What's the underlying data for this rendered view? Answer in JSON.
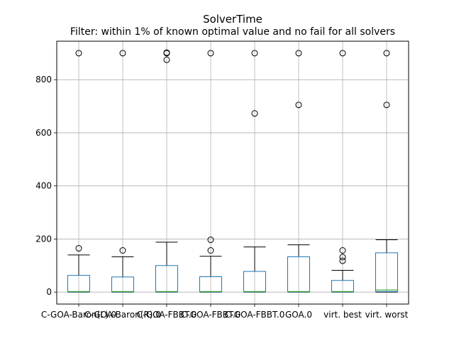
{
  "chart_data": {
    "type": "box",
    "title": "SolverTime",
    "subtitle": "Filter: within 1% of known optimal value and no fail for all solvers",
    "xlabel": "",
    "ylabel": "",
    "ylim": [
      -45,
      945
    ],
    "yticks": [
      0,
      200,
      400,
      600,
      800
    ],
    "grid": true,
    "colors": {
      "box": "#1f77b4",
      "median": "#2ca02c",
      "whisker": "#000000",
      "grid": "#b0b0b0",
      "flier": "#000000"
    },
    "categories": [
      "C-GOA-Baron(L).0",
      "C-GOA-Baron(R).0",
      "C-GOA-FBBT.0",
      "C-GOA-FBBT.0",
      "C-GOA-FBBT.0",
      "GOA.0",
      "virt. best",
      "virt. worst"
    ],
    "boxes": [
      {
        "q1": 1,
        "median": 2,
        "q3": 63,
        "whislo": 0,
        "whishi": 140,
        "fliers": [
          165,
          900
        ]
      },
      {
        "q1": 1,
        "median": 2,
        "q3": 57,
        "whislo": 0,
        "whishi": 133,
        "fliers": [
          157,
          900
        ]
      },
      {
        "q1": 1,
        "median": 2,
        "q3": 100,
        "whislo": 0,
        "whishi": 188,
        "fliers": [
          875,
          900,
          902
        ]
      },
      {
        "q1": 1,
        "median": 2,
        "q3": 58,
        "whislo": 0,
        "whishi": 135,
        "fliers": [
          157,
          197,
          900
        ]
      },
      {
        "q1": 1,
        "median": 2,
        "q3": 78,
        "whislo": 0,
        "whishi": 170,
        "fliers": [
          673,
          900
        ]
      },
      {
        "q1": 1,
        "median": 2,
        "q3": 133,
        "whislo": 0,
        "whishi": 178,
        "fliers": [
          705,
          900
        ]
      },
      {
        "q1": 1,
        "median": 2,
        "q3": 44,
        "whislo": 0,
        "whishi": 82,
        "fliers": [
          118,
          132,
          157,
          900
        ]
      },
      {
        "q1": 2,
        "median": 8,
        "q3": 148,
        "whislo": 0,
        "whishi": 197,
        "fliers": [
          705,
          900
        ]
      }
    ]
  }
}
